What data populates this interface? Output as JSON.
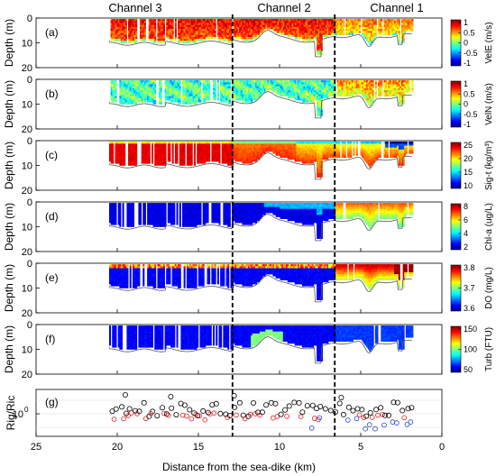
{
  "chart_data": {
    "type": "heatmap",
    "channel_labels": [
      "Channel 3",
      "Channel 2",
      "Channel 1"
    ],
    "channel_divider_x_km": [
      12.9,
      6.6
    ],
    "xlabel": "Distance from the sea-dike (km)",
    "xlim": [
      25,
      0
    ],
    "x_ticks": [
      "25",
      "20",
      "15",
      "10",
      "5",
      "0"
    ],
    "x_tick_values": [
      25,
      20,
      15,
      10,
      5,
      0
    ],
    "colormap": "jet",
    "panels": [
      {
        "letter": "(a)",
        "ylabel": "Depth (m)",
        "ylim": [
          20,
          0
        ],
        "y_ticks": [
          "0",
          "10",
          "20"
        ],
        "cbar_label": "VelE (m/s)",
        "cbar_ticks": [
          "1",
          "0.5",
          "0",
          "-0.5",
          "-1"
        ],
        "cbar_range": [
          -1,
          1
        ]
      },
      {
        "letter": "(b)",
        "ylabel": "Depth (m)",
        "ylim": [
          20,
          0
        ],
        "y_ticks": [
          "0",
          "10",
          "20"
        ],
        "cbar_label": "VelN (m/s)",
        "cbar_ticks": [
          "1",
          "0.5",
          "0",
          "-0.5",
          "-1"
        ],
        "cbar_range": [
          -1,
          1
        ]
      },
      {
        "letter": "(c)",
        "ylabel": "Depth (m)",
        "ylim": [
          20,
          0
        ],
        "y_ticks": [
          "0",
          "10",
          "20"
        ],
        "cbar_label": "Sig-t (kg/m³)",
        "cbar_ticks": [
          "25",
          "20",
          "15",
          "10"
        ],
        "cbar_range": [
          10,
          25
        ]
      },
      {
        "letter": "(d)",
        "ylabel": "Depth (m)",
        "ylim": [
          20,
          0
        ],
        "y_ticks": [
          "0",
          "10",
          "20"
        ],
        "cbar_label": "Chl-a (ug/L)",
        "cbar_ticks": [
          "8",
          "6",
          "4",
          "2"
        ],
        "cbar_range": [
          1,
          8
        ]
      },
      {
        "letter": "(e)",
        "ylabel": "Depth (m)",
        "ylim": [
          20,
          0
        ],
        "y_ticks": [
          "0",
          "10",
          "20"
        ],
        "cbar_label": "DO (mg/L)",
        "cbar_ticks": [
          "3.8",
          "3.7",
          "3.6"
        ],
        "cbar_range": [
          3.6,
          3.8
        ]
      },
      {
        "letter": "(f)",
        "ylabel": "Depth (m)",
        "ylim": [
          20,
          0
        ],
        "y_ticks": [
          "0",
          "10",
          "20"
        ],
        "cbar_label": "Turb (FTU)",
        "cbar_ticks": [
          "150",
          "100",
          "50"
        ],
        "cbar_range": [
          30,
          160
        ]
      }
    ],
    "richardson_panel": {
      "letter": "(g)",
      "ylabel": "Rig/Ric",
      "y_tick": "10",
      "y_tick_exponent": "0",
      "marker": "open-circle",
      "series_colors": [
        "#000000",
        "#e41a1c",
        "#1f3fd6"
      ]
    }
  }
}
